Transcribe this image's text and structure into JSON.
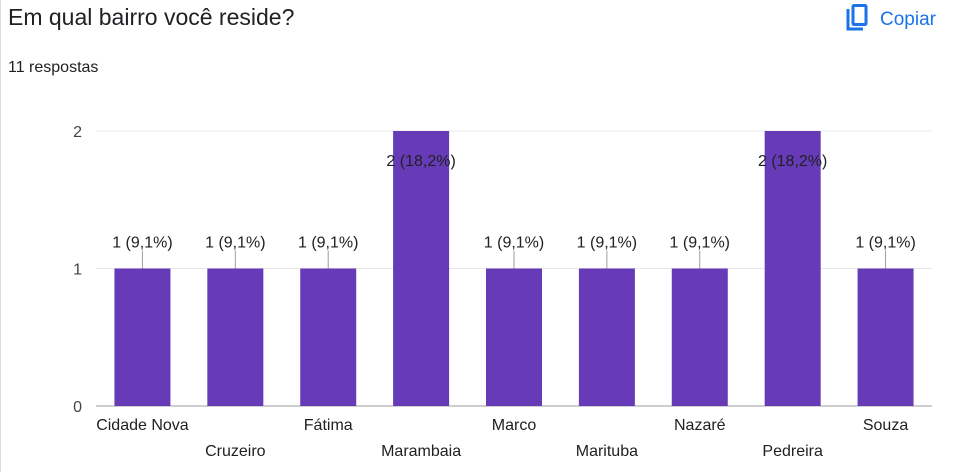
{
  "header": {
    "question": "Em qual bairro você reside?",
    "responses": "11 respostas",
    "copy_label": "Copiar",
    "copy_icon": "copy-icon",
    "accent": "#1a73e8"
  },
  "chart_data": {
    "type": "bar",
    "categories": [
      "Cidade Nova",
      "Cruzeiro",
      "Fátima",
      "Marambaia",
      "Marco",
      "Marituba",
      "Nazaré",
      "Pedreira",
      "Souza"
    ],
    "values": [
      1,
      1,
      1,
      2,
      1,
      1,
      1,
      2,
      1
    ],
    "data_labels": [
      "1 (9,1%)",
      "1 (9,1%)",
      "1 (9,1%)",
      "2 (18,2%)",
      "1 (9,1%)",
      "1 (9,1%)",
      "1 (9,1%)",
      "2 (18,2%)",
      "1 (9,1%)"
    ],
    "yticks": [
      "0",
      "1",
      "2"
    ],
    "ylim": [
      0,
      2
    ],
    "grid": true,
    "bar_color": "#673ab7"
  }
}
